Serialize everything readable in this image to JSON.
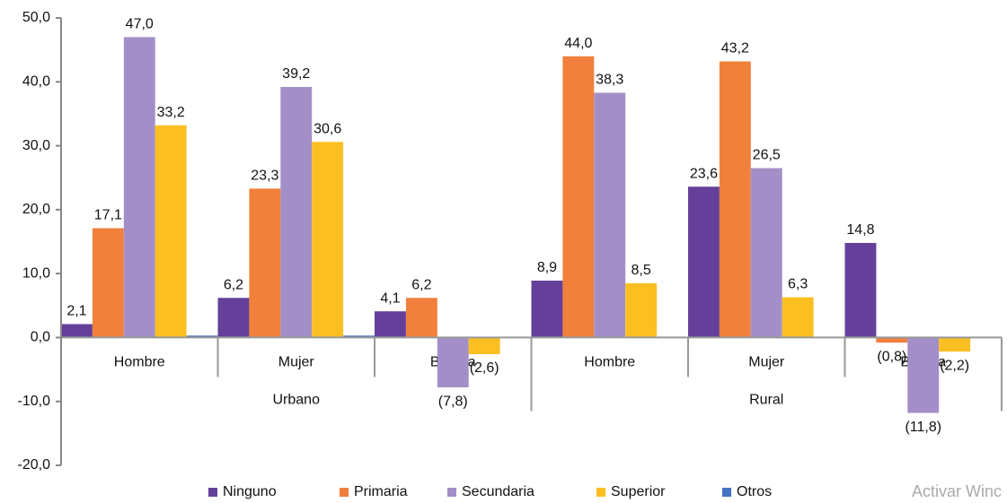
{
  "chart_data": {
    "type": "bar",
    "groups": [
      {
        "name": "Urbano",
        "categories": [
          "Hombre",
          "Mujer",
          "Brecha"
        ]
      },
      {
        "name": "Rural",
        "categories": [
          "Hombre",
          "Mujer",
          "Brecha"
        ]
      }
    ],
    "series": [
      {
        "name": "Ninguno",
        "color": "#65409a",
        "values": [
          2.1,
          6.2,
          4.1,
          8.9,
          23.6,
          14.8
        ],
        "value_labels": [
          "2,1",
          "6,2",
          "4,1",
          "8,9",
          "23,6",
          "14,8"
        ]
      },
      {
        "name": "Primaria",
        "color": "#f0803c",
        "values": [
          17.1,
          23.3,
          6.2,
          44.0,
          43.2,
          -0.8
        ],
        "value_labels": [
          "17,1",
          "23,3",
          "6,2",
          "44,0",
          "43,2",
          "(0,8)"
        ]
      },
      {
        "name": "Secundaria",
        "color": "#a38fc7",
        "values": [
          47.0,
          39.2,
          -7.8,
          38.3,
          26.5,
          -11.8
        ],
        "value_labels": [
          "47,0",
          "39,2",
          "(7,8)",
          "38,3",
          "26,5",
          "(11,8)"
        ]
      },
      {
        "name": "Superior",
        "color": "#fbbf22",
        "values": [
          33.2,
          30.6,
          -2.6,
          8.5,
          6.3,
          -2.2
        ],
        "value_labels": [
          "33,2",
          "30,6",
          "(2,6)",
          "8,5",
          "6,3",
          "(2,2)"
        ]
      },
      {
        "name": "Otros",
        "color": "#4472c4",
        "values": [
          0.3,
          0.3,
          0,
          0,
          0,
          0
        ]
      }
    ],
    "ylim": [
      -20,
      50
    ],
    "yticks": [
      {
        "value": -20,
        "label": "-20,0"
      },
      {
        "value": -10,
        "label": "-10,0"
      },
      {
        "value": 0,
        "label": "0,0"
      },
      {
        "value": 10,
        "label": "10,0"
      },
      {
        "value": 20,
        "label": "20,0"
      },
      {
        "value": 30,
        "label": "30,0"
      },
      {
        "value": 40,
        "label": "40,0"
      },
      {
        "value": 50,
        "label": "50,0"
      }
    ],
    "legend": "bottom",
    "watermark": "Activar Winc"
  }
}
